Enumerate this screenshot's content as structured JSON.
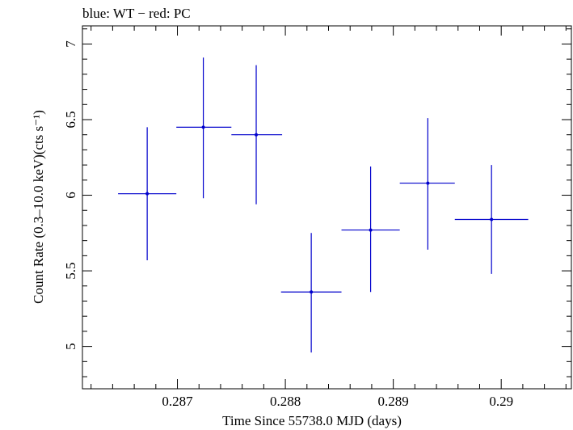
{
  "chart_data": {
    "type": "scatter",
    "title": "blue: WT − red: PC",
    "xlabel": "Time Since 55738.0 MJD (days)",
    "ylabel": "Count Rate (0.3–10.0 keV)(cts s⁻¹)",
    "xlim": [
      0.28612,
      0.29065
    ],
    "ylim": [
      4.72,
      7.12
    ],
    "xticks": [
      {
        "value": 0.287,
        "label": "0.287"
      },
      {
        "value": 0.288,
        "label": "0.288"
      },
      {
        "value": 0.289,
        "label": "0.289"
      },
      {
        "value": 0.29,
        "label": "0.29"
      }
    ],
    "yticks": [
      {
        "value": 5.0,
        "label": "5"
      },
      {
        "value": 5.5,
        "label": "5.5"
      },
      {
        "value": 6.0,
        "label": "6"
      },
      {
        "value": 6.5,
        "label": "6.5"
      },
      {
        "value": 7.0,
        "label": "7"
      }
    ],
    "grid": false,
    "series": [
      {
        "color": "#0000cc",
        "points": [
          {
            "x": 0.28672,
            "y": 6.01,
            "xlo": 0.28645,
            "xhi": 0.28699,
            "ylo": 5.57,
            "yhi": 6.45
          },
          {
            "x": 0.28724,
            "y": 6.45,
            "xlo": 0.28699,
            "xhi": 0.2875,
            "ylo": 5.98,
            "yhi": 6.91
          },
          {
            "x": 0.28773,
            "y": 6.4,
            "xlo": 0.2875,
            "xhi": 0.28797,
            "ylo": 5.94,
            "yhi": 6.86
          },
          {
            "x": 0.28824,
            "y": 5.36,
            "xlo": 0.28796,
            "xhi": 0.28852,
            "ylo": 4.96,
            "yhi": 5.75
          },
          {
            "x": 0.28879,
            "y": 5.77,
            "xlo": 0.28852,
            "xhi": 0.28906,
            "ylo": 5.36,
            "yhi": 6.19
          },
          {
            "x": 0.28932,
            "y": 6.08,
            "xlo": 0.28906,
            "xhi": 0.28957,
            "ylo": 5.64,
            "yhi": 6.51
          },
          {
            "x": 0.28991,
            "y": 5.84,
            "xlo": 0.28957,
            "xhi": 0.29025,
            "ylo": 5.48,
            "yhi": 6.2
          }
        ]
      }
    ]
  }
}
